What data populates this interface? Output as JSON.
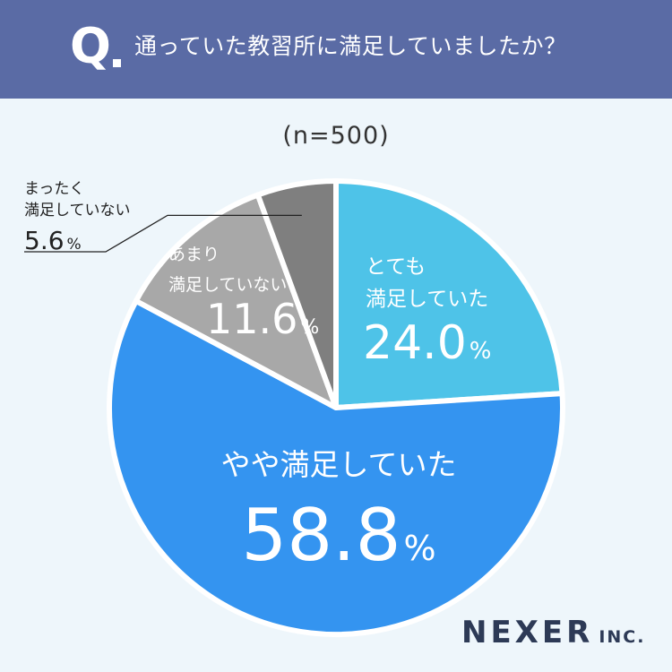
{
  "header": {
    "q_mark": "Q",
    "question": "通っていた教習所に満足していましたか？"
  },
  "sample_size": "(n=500)",
  "brand": {
    "name": "NEXER",
    "suffix": "INC."
  },
  "colors": {
    "header_bg": "#5a6ba5",
    "page_bg": "#eef6fb",
    "very_satisfied": "#4ec3e8",
    "somewhat_satisfied": "#3494f0",
    "not_very_satisfied": "#a8a8a8",
    "not_at_all_satisfied": "#7f7f7f"
  },
  "chart_data": {
    "type": "pie",
    "title": "通っていた教習所に満足していましたか？",
    "sample": "(n=500)",
    "unit": "%",
    "slices": [
      {
        "lines": [
          "とても",
          "満足していた"
        ],
        "value": "24.0",
        "percent": 24.0,
        "color": "#4ec3e8"
      },
      {
        "lines": [
          "やや満足していた"
        ],
        "value": "58.8",
        "percent": 58.8,
        "color": "#3494f0"
      },
      {
        "lines": [
          "あまり",
          "満足していない"
        ],
        "value": "11.6",
        "percent": 11.6,
        "color": "#a8a8a8"
      },
      {
        "lines": [
          "まったく",
          "満足していない"
        ],
        "value": "5.6",
        "percent": 5.6,
        "color": "#7f7f7f"
      }
    ]
  }
}
